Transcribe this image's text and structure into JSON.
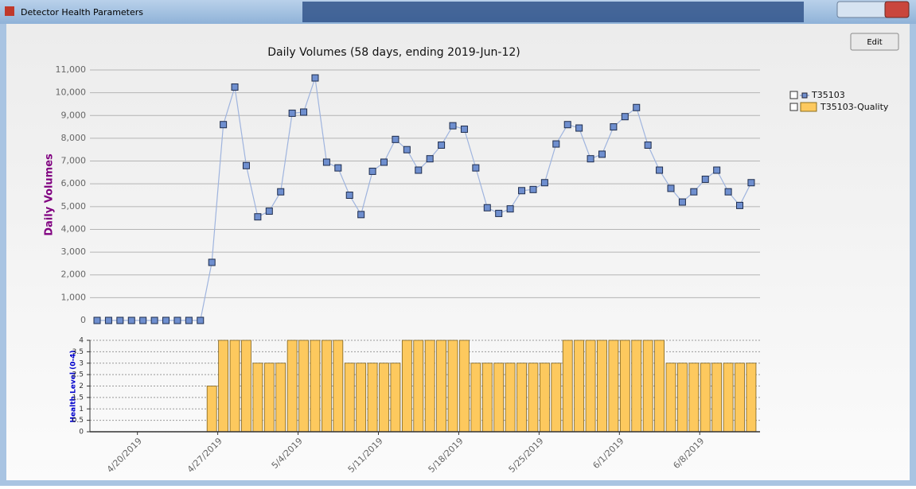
{
  "window": {
    "title": "Detector Health Parameters",
    "edit_button": "Edit"
  },
  "chart_data": [
    {
      "type": "line",
      "title": "Daily Volumes (58 days, ending 2019-Jun-12)",
      "y_label": "Daily Volumes",
      "ylim": [
        0,
        11000
      ],
      "yticks": [
        0,
        {
          "value": 1000,
          "label": "1,000"
        },
        {
          "value": 2000,
          "label": "2,000"
        },
        {
          "value": 3000,
          "label": "3,000"
        },
        {
          "value": 4000,
          "label": "4,000"
        },
        {
          "value": 5000,
          "label": "5,000"
        },
        {
          "value": 6000,
          "label": "6,000"
        },
        {
          "value": 7000,
          "label": "7,000"
        },
        {
          "value": 8000,
          "label": "8,000"
        },
        {
          "value": 9000,
          "label": "9,000"
        },
        {
          "value": 10000,
          "label": "10,000"
        },
        {
          "value": 11000,
          "label": "11,000"
        }
      ],
      "grid": true,
      "series": [
        {
          "name": "T35103",
          "color": "#6f8fcf",
          "values": [
            0,
            0,
            0,
            0,
            0,
            0,
            0,
            0,
            0,
            0,
            2550,
            8600,
            10250,
            6800,
            4550,
            4800,
            5650,
            9100,
            9150,
            10650,
            6950,
            6700,
            5500,
            4650,
            6550,
            6950,
            7950,
            7500,
            6600,
            7100,
            7700,
            8550,
            8400,
            6700,
            4950,
            4700,
            4900,
            5700,
            5750,
            6050,
            7750,
            8600,
            8450,
            7100,
            7300,
            8500,
            8950,
            9350,
            7700,
            6600,
            5800,
            5200,
            5650,
            6200,
            6600,
            5650,
            5050,
            6050
          ]
        }
      ]
    },
    {
      "type": "bar",
      "y_label": "Health Level (0-4)",
      "categories": [
        null,
        null,
        null,
        null,
        "4/20/2019",
        null,
        null,
        null,
        null,
        null,
        null,
        "4/27/2019",
        null,
        null,
        null,
        null,
        null,
        null,
        "5/4/2019",
        null,
        null,
        null,
        null,
        null,
        null,
        "5/11/2019",
        null,
        null,
        null,
        null,
        null,
        null,
        "5/18/2019",
        null,
        null,
        null,
        null,
        null,
        null,
        "5/25/2019",
        null,
        null,
        null,
        null,
        null,
        null,
        "6/1/2019",
        null,
        null,
        null,
        null,
        null,
        null,
        "6/8/2019",
        null,
        null,
        null,
        null
      ],
      "ylim": [
        0,
        4
      ],
      "yticks": [
        0,
        0.5,
        1,
        1.5,
        2,
        2.5,
        3,
        3.5,
        4
      ],
      "grid": true,
      "series": [
        {
          "name": "T35103-Quality",
          "color": "#fdc95e",
          "values": [
            0,
            0,
            0,
            0,
            0,
            0,
            0,
            0,
            0,
            0,
            2,
            4,
            4,
            4,
            3,
            3,
            3,
            4,
            4,
            4,
            4,
            4,
            3,
            3,
            3,
            3,
            3,
            4,
            4,
            4,
            4,
            4,
            4,
            3,
            3,
            3,
            3,
            3,
            3,
            3,
            3,
            4,
            4,
            4,
            4,
            4,
            4,
            4,
            4,
            4,
            3,
            3,
            3,
            3,
            3,
            3,
            3,
            3
          ]
        }
      ]
    }
  ]
}
